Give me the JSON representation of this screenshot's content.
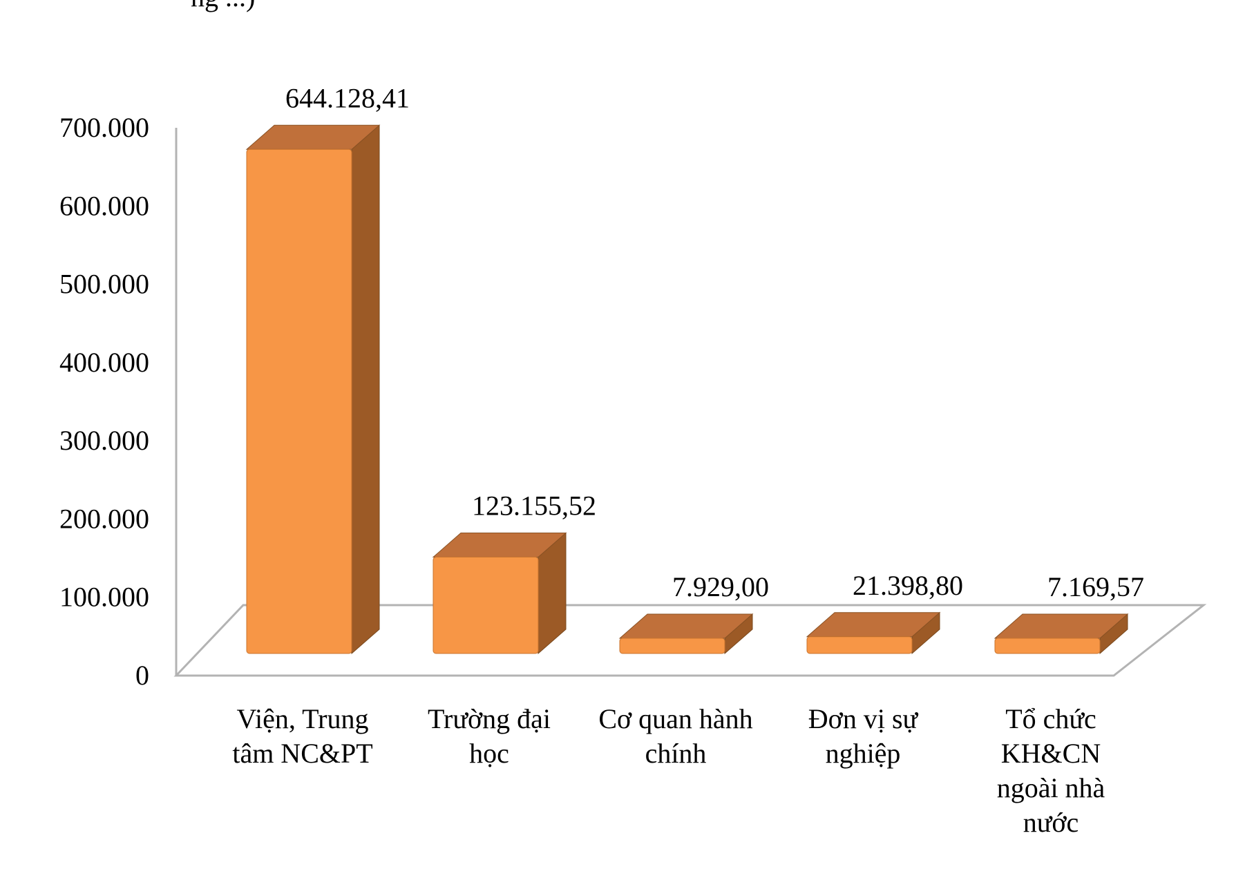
{
  "header_fragment": "ng ...)",
  "chart_data": {
    "type": "bar",
    "title": "",
    "xlabel": "",
    "ylabel": "",
    "ylim": [
      0,
      700000
    ],
    "yticks": [
      0,
      100000,
      200000,
      300000,
      400000,
      500000,
      600000,
      700000
    ],
    "ytick_labels": [
      "0",
      "100.000",
      "200.000",
      "300.000",
      "400.000",
      "500.000",
      "600.000",
      "700.000"
    ],
    "categories": [
      [
        "Viện, Trung",
        "tâm NC&PT"
      ],
      [
        "Trường đại",
        "học"
      ],
      [
        "Cơ quan hành",
        "chính"
      ],
      [
        "Đơn vị sự",
        "nghiệp"
      ],
      [
        "Tổ chức",
        "KH&CN",
        "ngoài nhà",
        "nước"
      ]
    ],
    "values": [
      644128.41,
      123155.52,
      7929.0,
      21398.8,
      7169.57
    ],
    "data_labels": [
      "644.128,41",
      "123.155,52",
      "7.929,00",
      "21.398,80",
      "7.169,57"
    ],
    "style": "3d-column",
    "grid": false,
    "legend": "none",
    "colors": {
      "front": "#F79646",
      "side": "#9C5A26",
      "top": "#C0703A",
      "floor": "#B3B3B3"
    }
  }
}
